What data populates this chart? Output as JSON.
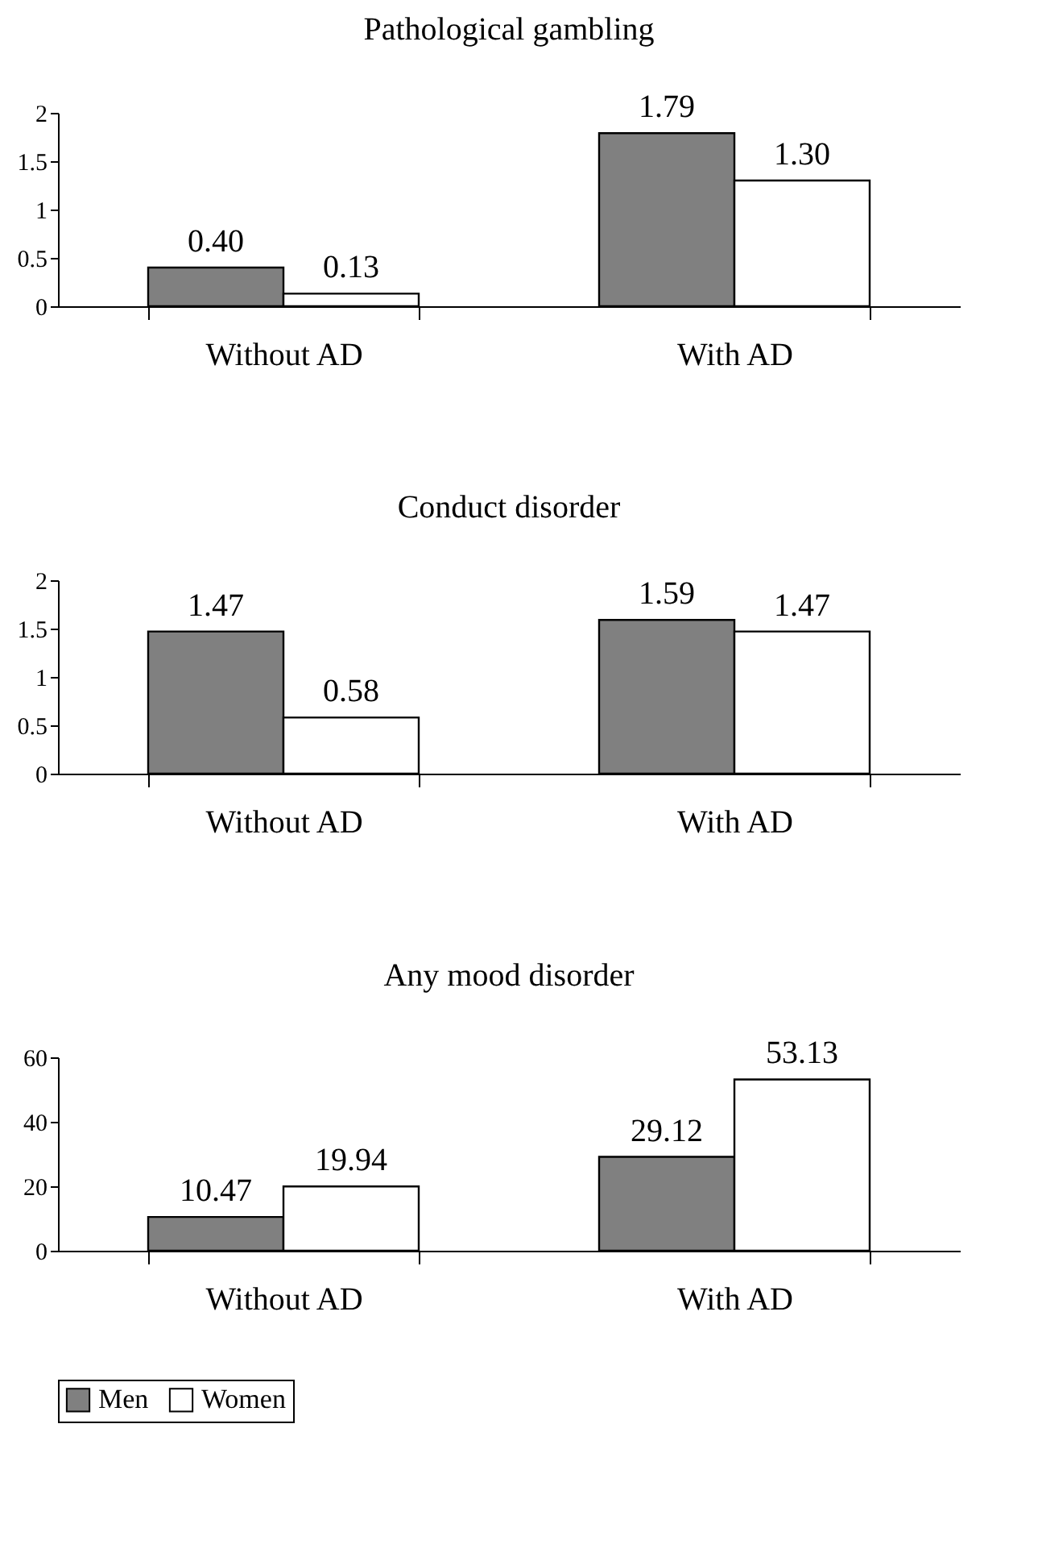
{
  "chart_data": [
    {
      "type": "bar",
      "title": "Pathological gambling",
      "categories": [
        "Without AD",
        "With AD"
      ],
      "ylim": [
        0,
        2
      ],
      "yticks": [
        0,
        0.5,
        1,
        1.5,
        2
      ],
      "series": [
        {
          "color": "#808080",
          "values": [
            0.4,
            1.79
          ],
          "value_labels": [
            "0.40",
            "1.79"
          ]
        },
        {
          "color": "#ffffff",
          "values": [
            0.13,
            1.3
          ],
          "value_labels": [
            "0.13",
            "1.30"
          ]
        }
      ]
    },
    {
      "type": "bar",
      "title": "Conduct disorder",
      "categories": [
        "Without AD",
        "With AD"
      ],
      "ylim": [
        0,
        2
      ],
      "yticks": [
        0,
        0.5,
        1,
        1.5,
        2
      ],
      "series": [
        {
          "color": "#808080",
          "values": [
            1.47,
            1.59
          ],
          "value_labels": [
            "1.47",
            "1.59"
          ]
        },
        {
          "color": "#ffffff",
          "values": [
            0.58,
            1.47
          ],
          "value_labels": [
            "0.58",
            "1.47"
          ]
        }
      ]
    },
    {
      "type": "bar",
      "title": "Any mood disorder",
      "categories": [
        "Without AD",
        "With AD"
      ],
      "ylim": [
        0,
        60
      ],
      "yticks": [
        0,
        20,
        40,
        60
      ],
      "legend": "bottom",
      "series": [
        {
          "name": "Men",
          "color": "#808080",
          "values": [
            10.47,
            29.12
          ],
          "value_labels": [
            "10.47",
            "29.12"
          ]
        },
        {
          "name": "Women",
          "color": "#ffffff",
          "values": [
            19.94,
            53.13
          ],
          "value_labels": [
            "19.94",
            "53.13"
          ]
        }
      ]
    }
  ]
}
